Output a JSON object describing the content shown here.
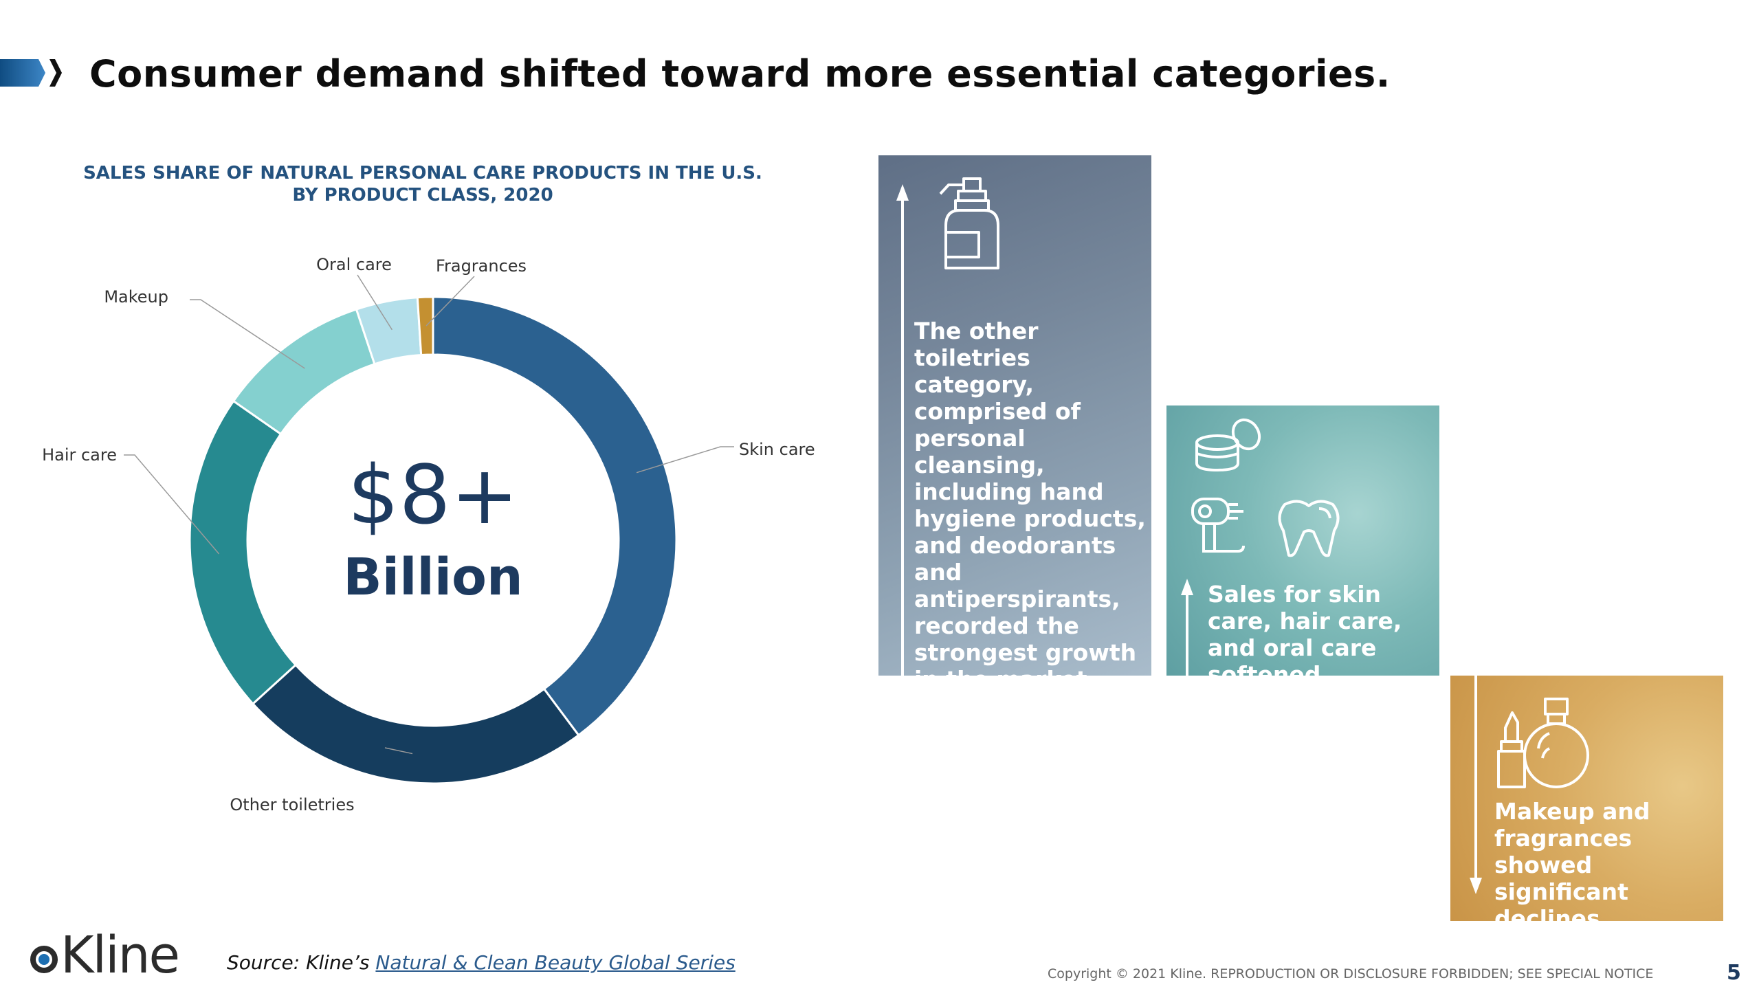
{
  "slide": {
    "title": "Consumer demand shifted toward more essential categories.",
    "page_number": "5"
  },
  "chart_data": {
    "type": "pie",
    "subtype": "donut",
    "title": "SALES SHARE OF NATURAL PERSONAL CARE PRODUCTS IN THE U.S. BY PRODUCT CLASS, 2020",
    "categories": [
      "Skin care",
      "Other toiletries",
      "Hair care",
      "Makeup",
      "Oral care",
      "Fragrances"
    ],
    "values": [
      39,
      23,
      21,
      10,
      4,
      1
    ],
    "colors": [
      "#2b6190",
      "#153d5e",
      "#268a90",
      "#84d0cf",
      "#b3dfea",
      "#c49031"
    ],
    "center_value": "$8+",
    "center_unit": "Billion"
  },
  "panels": [
    {
      "text": "The other toiletries category, comprised of personal cleansing, including hand hygiene products, and deodorants and antiperspirants, recorded the strongest growth in the market, registering double-digit increases.",
      "trend": "up",
      "icon": "pump-bottle-icon"
    },
    {
      "text": "Sales for skin care, hair care, and oral care softened.",
      "trend": "up",
      "icon": "cream-jar-hairdryer-tooth-icon"
    },
    {
      "text": "Makeup and fragrances showed significant declines.",
      "trend": "down",
      "icon": "lipstick-perfume-icon"
    }
  ],
  "footer": {
    "logo_text": "Kline",
    "source_prefix": "Source: Kline’s ",
    "source_link": "Natural & Clean Beauty Global Series",
    "copyright": "Copyright © 2021 Kline. REPRODUCTION OR DISCLOSURE FORBIDDEN; SEE SPECIAL NOTICE"
  }
}
